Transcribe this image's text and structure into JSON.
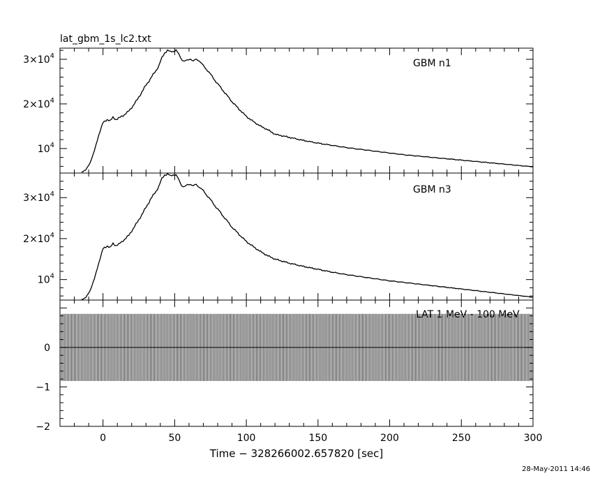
{
  "file_title": "lat_gbm_1s_lc2.txt",
  "timestamp": "28-May-2011 14:46",
  "xlabel": "Time − 328266002.657820 [sec]",
  "x_ticks": [
    "0",
    "50",
    "100",
    "150",
    "200",
    "250",
    "300"
  ],
  "xlim": [
    -30,
    300
  ],
  "chart_data": [
    {
      "type": "line",
      "series_label": "GBM n1",
      "ylim": [
        4500,
        32500
      ],
      "y_ticks": [
        {
          "value": 10000,
          "mantissa": "",
          "exponent": "4"
        },
        {
          "value": 20000,
          "mantissa": "2×",
          "exponent": "4"
        },
        {
          "value": 30000,
          "mantissa": "3×",
          "exponent": "4"
        }
      ],
      "x": [
        -15,
        -12,
        -9,
        -6,
        -3,
        0,
        3,
        5,
        7,
        9,
        11,
        13,
        15,
        18,
        21,
        24,
        27,
        30,
        33,
        36,
        39,
        41,
        43,
        45,
        47,
        49,
        51,
        53,
        55,
        57,
        59,
        61,
        63,
        65,
        67,
        70,
        73,
        76,
        80,
        85,
        90,
        95,
        100,
        105,
        110,
        115,
        120,
        130,
        140,
        150,
        160,
        170,
        180,
        190,
        200,
        210,
        220,
        230,
        240,
        250,
        260,
        270,
        280,
        290,
        300
      ],
      "values": [
        4700,
        5200,
        6800,
        9500,
        13000,
        15800,
        16500,
        16200,
        17000,
        16500,
        16800,
        17200,
        17600,
        18400,
        19600,
        21000,
        22600,
        24200,
        25600,
        27000,
        28600,
        30200,
        31500,
        32000,
        31600,
        31900,
        32000,
        31000,
        30000,
        29500,
        29800,
        30200,
        29500,
        30000,
        29800,
        28500,
        27500,
        26200,
        24500,
        22500,
        20500,
        18800,
        17200,
        16000,
        15000,
        14200,
        13200,
        12500,
        11800,
        11200,
        10700,
        10200,
        9800,
        9400,
        9000,
        8600,
        8300,
        8000,
        7700,
        7400,
        7100,
        6800,
        6500,
        6200,
        5900
      ]
    },
    {
      "type": "line",
      "series_label": "GBM n3",
      "ylim": [
        5000,
        36000
      ],
      "y_ticks": [
        {
          "value": 10000,
          "mantissa": "",
          "exponent": "4"
        },
        {
          "value": 20000,
          "mantissa": "2×",
          "exponent": "4"
        },
        {
          "value": 30000,
          "mantissa": "3×",
          "exponent": "4"
        }
      ],
      "x": [
        -15,
        -12,
        -9,
        -6,
        -3,
        0,
        3,
        5,
        7,
        9,
        11,
        13,
        15,
        18,
        21,
        24,
        27,
        30,
        33,
        36,
        39,
        41,
        43,
        45,
        47,
        49,
        51,
        53,
        55,
        57,
        59,
        61,
        63,
        65,
        67,
        70,
        73,
        76,
        80,
        85,
        90,
        95,
        100,
        105,
        110,
        115,
        120,
        130,
        140,
        150,
        160,
        170,
        180,
        190,
        200,
        210,
        220,
        230,
        240,
        250,
        260,
        270,
        280,
        290,
        300
      ],
      "values": [
        5100,
        5600,
        7300,
        10200,
        14000,
        17500,
        18200,
        17800,
        18800,
        18300,
        18600,
        19200,
        19800,
        20800,
        22400,
        24000,
        25800,
        27600,
        29500,
        31000,
        32800,
        34500,
        35600,
        35800,
        35200,
        35700,
        35500,
        34200,
        33000,
        32600,
        33100,
        33400,
        32800,
        33200,
        32700,
        31600,
        30400,
        29000,
        27200,
        25000,
        22800,
        21000,
        19300,
        18000,
        16800,
        15800,
        15000,
        14000,
        13200,
        12500,
        11800,
        11200,
        10700,
        10200,
        9700,
        9300,
        8900,
        8500,
        8100,
        7700,
        7300,
        6900,
        6500,
        6100,
        5700
      ]
    },
    {
      "type": "bar",
      "series_label": "LAT 1 MeV - 100 MeV",
      "ylim": [
        -2,
        1.2
      ],
      "y_ticks": [
        "−2",
        "−1",
        "0"
      ],
      "band_values": [
        -0.85,
        0.85
      ]
    }
  ]
}
